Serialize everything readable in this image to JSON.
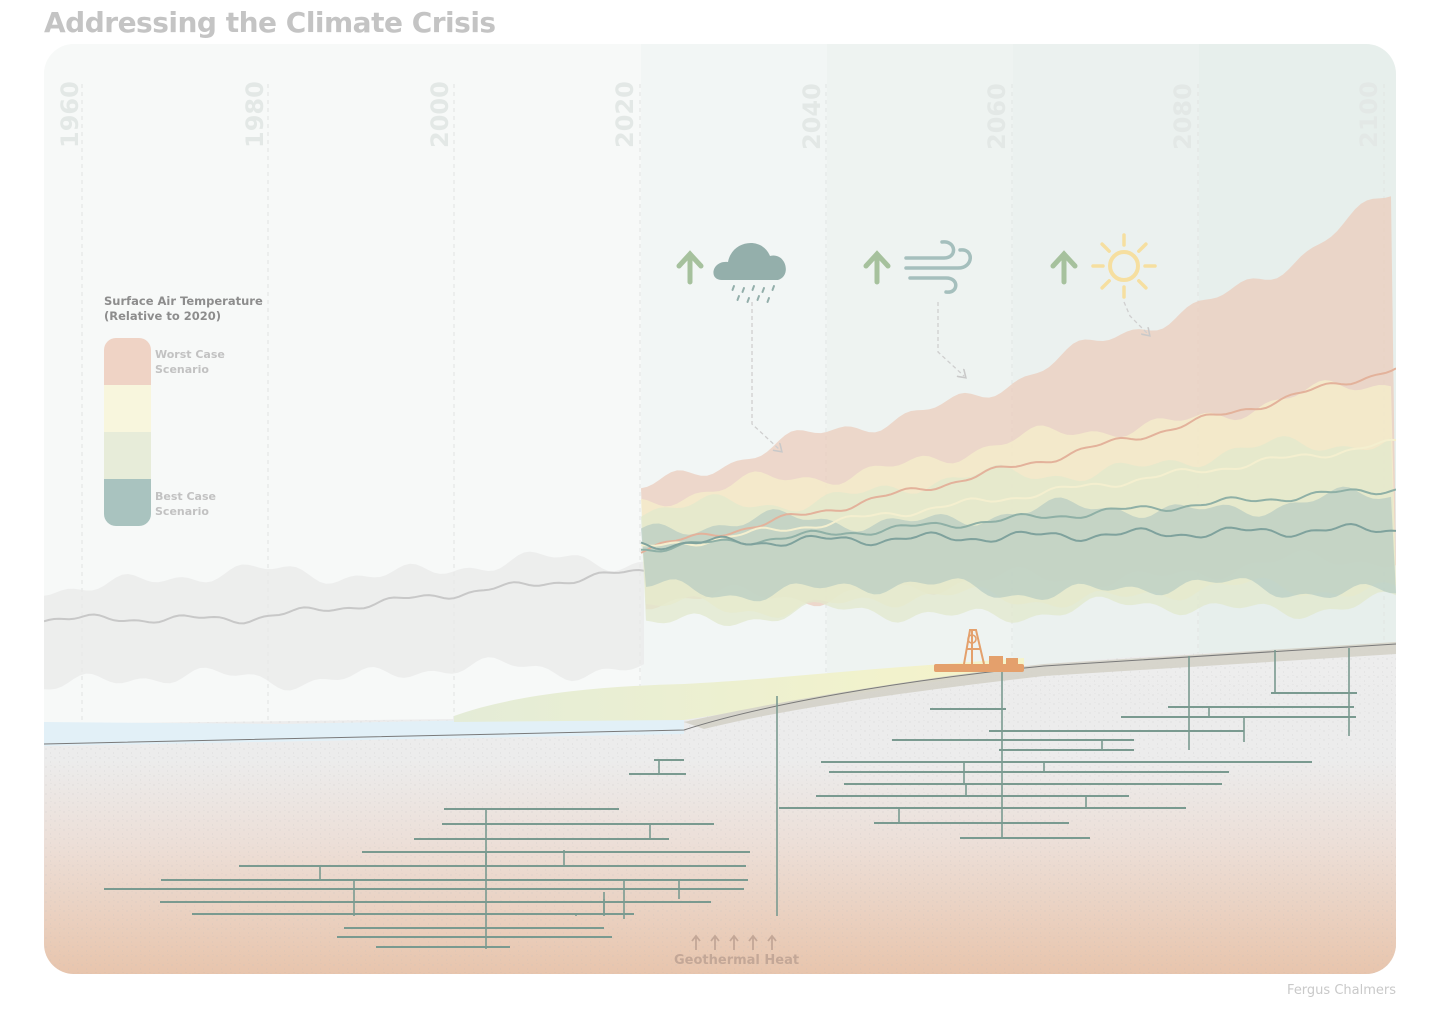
{
  "title": "Addressing the Climate Crisis",
  "credit": "Fergus Chalmers",
  "timeline": {
    "years": [
      "1960",
      "1980",
      "2000",
      "2020",
      "2040",
      "2060",
      "2080",
      "2100"
    ]
  },
  "legend": {
    "title_line1": "Surface Air Temperature",
    "title_line2": "(Relative to 2020)",
    "worst_line1": "Worst Case",
    "worst_line2": "Scenario",
    "best_line1": "Best Case",
    "best_line2": "Scenario",
    "colors": [
      "#efd3c5",
      "#f8f6dd",
      "#e7ecd9",
      "#a9c3bf"
    ]
  },
  "indicators": [
    {
      "icon": "rain-cloud-icon",
      "trend": "up-arrow-icon"
    },
    {
      "icon": "wind-icon",
      "trend": "up-arrow-icon"
    },
    {
      "icon": "sun-icon",
      "trend": "up-arrow-icon"
    }
  ],
  "geothermal": {
    "label": "Geothermal Heat",
    "arrow_count": 5
  },
  "colors": {
    "title": "#c4c4c4",
    "history_line": "#c8c8c8",
    "worst": "#e3b6a2",
    "high": "#f5ecbd",
    "mid": "#dfe6c8",
    "best": "#7fa29d",
    "tunnel": "#7a9a90",
    "rig": "#e4a06c"
  }
}
